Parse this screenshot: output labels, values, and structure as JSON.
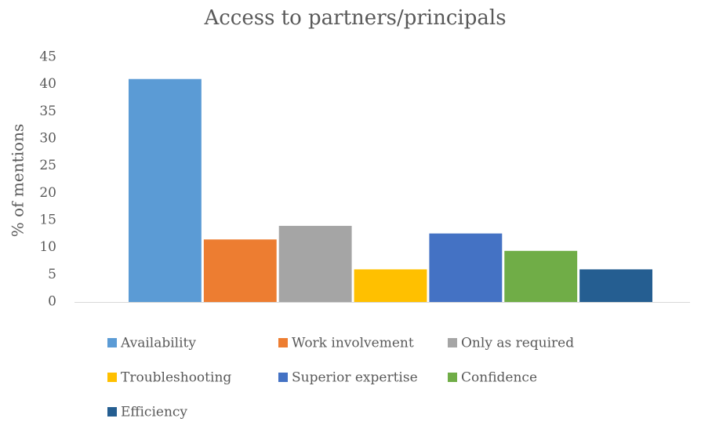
{
  "chart_data": {
    "type": "bar",
    "title": "Access to partners/principals",
    "y_label": "% of mentions",
    "categories": [
      null
    ],
    "series": [
      {
        "name": "Availability",
        "color": "#5b9bd5",
        "values": [
          41
        ]
      },
      {
        "name": "Work involvement",
        "color": "#ed7d31",
        "values": [
          11.5
        ]
      },
      {
        "name": "Only as required",
        "color": "#a5a5a5",
        "values": [
          14
        ]
      },
      {
        "name": "Troubleshooting",
        "color": "#ffc000",
        "values": [
          6
        ]
      },
      {
        "name": "Superior expertise",
        "color": "#4472c4",
        "values": [
          12.6
        ]
      },
      {
        "name": "Confidence",
        "color": "#70ad47",
        "values": [
          9.4
        ]
      },
      {
        "name": "Efficiency",
        "color": "#255e91",
        "values": [
          6
        ]
      }
    ],
    "ylim": [
      0,
      45
    ],
    "yticks": [
      0,
      5,
      10,
      15,
      20,
      25,
      30,
      35,
      40,
      45
    ],
    "grid": false,
    "legend": "bottom"
  }
}
